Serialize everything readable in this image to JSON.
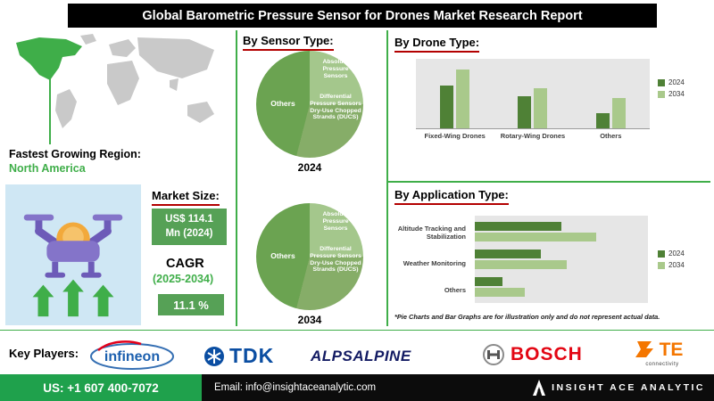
{
  "header": {
    "title": "Global Barometric Pressure Sensor for Drones Market Research Report"
  },
  "region": {
    "label": "Fastest Growing Region:",
    "value": "North America"
  },
  "market": {
    "size_label": "Market Size:",
    "size_value": "US$ 114.1 Mn (2024)",
    "cagr_label": "CAGR",
    "cagr_period": "(2025-2034)",
    "cagr_value": "11.1 %"
  },
  "sections": {
    "sensor_type_title": "By Sensor Type:",
    "drone_type_title": "By Drone Type:",
    "application_type_title": "By Application Type:",
    "disclaimer": "*Pie Charts and Bar Graphs are for illustration only and do not represent actual data."
  },
  "key_players": {
    "label": "Key Players:",
    "players": [
      "infineon",
      "TDK",
      "ALPSALPINE",
      "BOSCH",
      "TE"
    ],
    "te_subtext": "connectivity"
  },
  "footer": {
    "phone": "US: +1 607 400-7072",
    "email": "Email: info@insightaceanalytic.com",
    "brand": "INSIGHT ACE ANALYTIC"
  },
  "colors": {
    "accent_green": "#3fae49",
    "box_green": "#56a156",
    "series_2024": "#4f8136",
    "series_2034": "#a9c98b",
    "underline_red": "#b30000"
  },
  "chart_data": [
    {
      "type": "pie",
      "section": "By Sensor Type:",
      "slices": [
        "Absolute Pressure Sensors",
        "Differential Pressure Sensors Dry-Use Chopped Strands (DUCS)",
        "Others"
      ],
      "colors": [
        "#a4c78c",
        "#86ad68",
        "#6ba351"
      ],
      "pies": [
        {
          "year": "2024",
          "values": [
            25,
            29,
            46
          ]
        },
        {
          "year": "2034",
          "values": [
            25,
            29,
            46
          ]
        }
      ]
    },
    {
      "type": "bar",
      "section": "By Drone Type:",
      "categories": [
        "Fixed-Wing Drones",
        "Rotary-Wing Drones",
        "Others"
      ],
      "series": [
        {
          "name": "2024",
          "color": "#4f8136",
          "values": [
            62,
            46,
            22
          ]
        },
        {
          "name": "2034",
          "color": "#a9c98b",
          "values": [
            84,
            58,
            44
          ]
        }
      ],
      "ylim": [
        0,
        100
      ],
      "legend_position": "right",
      "grid": false
    },
    {
      "type": "bar",
      "orientation": "horizontal",
      "section": "By Application Type:",
      "categories": [
        "Altitude Tracking and Stabilization",
        "Weather Monitoring",
        "Others"
      ],
      "series": [
        {
          "name": "2024",
          "color": "#4f8136",
          "values": [
            50,
            38,
            16
          ]
        },
        {
          "name": "2034",
          "color": "#a9c98b",
          "values": [
            70,
            53,
            29
          ]
        }
      ],
      "xlim": [
        0,
        100
      ],
      "legend_position": "right",
      "grid": false
    }
  ]
}
